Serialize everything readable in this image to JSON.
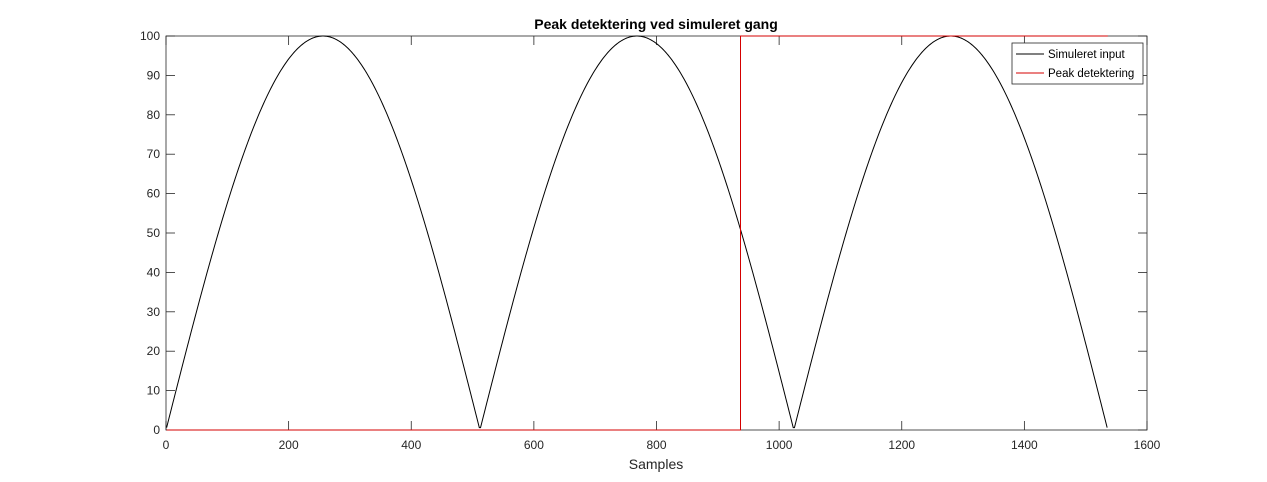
{
  "chart_data": {
    "type": "line",
    "title": "Peak detektering ved simuleret gang",
    "xlabel": "Samples",
    "ylabel": "",
    "xlim": [
      0,
      1600
    ],
    "ylim": [
      0,
      100
    ],
    "xticks": [
      0,
      200,
      400,
      600,
      800,
      1000,
      1200,
      1400,
      1600
    ],
    "yticks": [
      0,
      10,
      20,
      30,
      40,
      50,
      60,
      70,
      80,
      90,
      100
    ],
    "grid": false,
    "legend_position": "top-right",
    "series": [
      {
        "name": "Simuleret input",
        "color": "#000000",
        "kind": "abs-sine",
        "x_start": 1,
        "x_end": 1536,
        "half_period_samples": 512,
        "amplitude": 100
      },
      {
        "name": "Peak detektering",
        "color": "#d40000",
        "kind": "step",
        "x": [
          1,
          937,
          937,
          1536
        ],
        "y": [
          0,
          0,
          100,
          100
        ]
      }
    ]
  }
}
